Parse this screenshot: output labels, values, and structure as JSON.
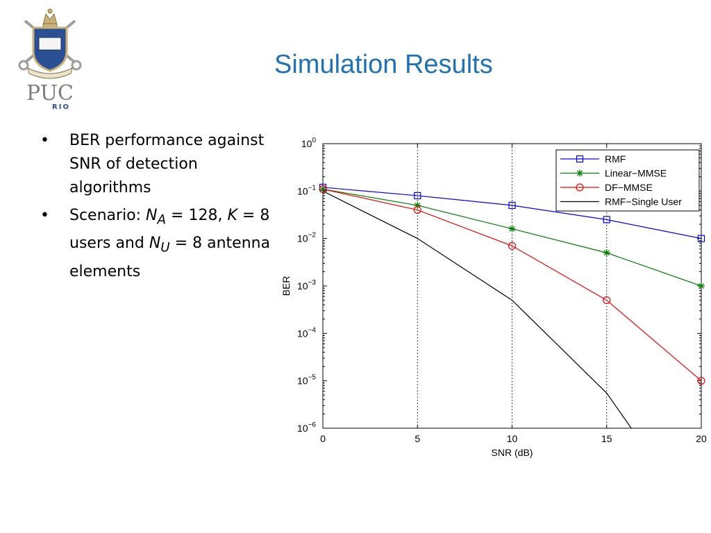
{
  "slide": {
    "title": "Simulation Results",
    "logo": {
      "text": "PUC",
      "subtext": "RIO",
      "icon": "puc-rio-crest-icon"
    }
  },
  "bullets": {
    "b1_text": "BER performance against SNR of detection algorithms",
    "b2_prefix": "Scenario: ",
    "b2_na_var": "N",
    "b2_na_sub": "A",
    "b2_na_value": " = 128, ",
    "b2_k_var": "K",
    "b2_k_value": " = 8 users and ",
    "b2_nu_var": "N",
    "b2_nu_sub": "U",
    "b2_nu_value": " = 8 antenna elements"
  },
  "colors": {
    "title": "#1f72b8",
    "rmf": "#0000ff",
    "linear_mmse": "#008000",
    "df_mmse": "#ff0000",
    "single_user": "#000000"
  },
  "chart_data": {
    "type": "line",
    "xlabel": "SNR (dB)",
    "ylabel": "BER",
    "xlim": [
      0,
      20
    ],
    "ylim": [
      1e-06,
      1
    ],
    "yscale": "log",
    "xticks": [
      0,
      5,
      10,
      15,
      20
    ],
    "yticks": [
      1e-06,
      1e-05,
      0.0001,
      0.001,
      0.01,
      0.1,
      1
    ],
    "grid": "vertical dotted",
    "legend_position": "top-right",
    "series": [
      {
        "name": "RMF",
        "color": "#0000ff",
        "marker": "square",
        "x": [
          0,
          5,
          10,
          15,
          20
        ],
        "y": [
          0.12,
          0.08,
          0.05,
          0.025,
          0.01
        ]
      },
      {
        "name": "Linear−MMSE",
        "color": "#008000",
        "marker": "star",
        "x": [
          0,
          5,
          10,
          15,
          20
        ],
        "y": [
          0.11,
          0.05,
          0.016,
          0.005,
          0.001
        ]
      },
      {
        "name": "DF−MMSE",
        "color": "#ff0000",
        "marker": "circle",
        "x": [
          0,
          5,
          10,
          15,
          20
        ],
        "y": [
          0.11,
          0.04,
          0.007,
          0.0005,
          1e-05
        ]
      },
      {
        "name": "RMF−Single User",
        "color": "#000000",
        "marker": "none",
        "x": [
          0,
          5,
          10,
          15,
          16.3
        ],
        "y": [
          0.1,
          0.01,
          0.0005,
          5.5e-06,
          1e-06
        ]
      }
    ]
  }
}
